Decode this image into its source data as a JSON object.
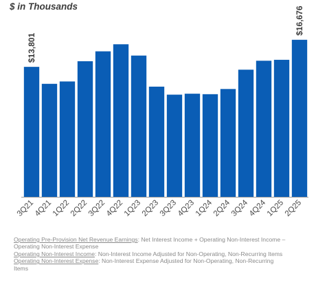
{
  "header": {
    "units_label": "$ in Thousands"
  },
  "chart_data": {
    "type": "bar",
    "title": "",
    "xlabel": "",
    "ylabel": "$ in Thousands",
    "categories": [
      "3Q21",
      "4Q21",
      "1Q22",
      "2Q22",
      "3Q22",
      "4Q22",
      "1Q23",
      "2Q23",
      "3Q23",
      "4Q23",
      "1Q24",
      "2Q24",
      "3Q24",
      "4Q24",
      "1Q25",
      "2Q25"
    ],
    "values": [
      13801,
      12000,
      12250,
      14400,
      15450,
      16200,
      15000,
      11700,
      10850,
      10950,
      10900,
      11450,
      13500,
      14450,
      14550,
      16676
    ],
    "ylim": [
      0,
      19000
    ],
    "grid": false,
    "color": "#0a5db5",
    "data_labels": [
      {
        "category": "3Q21",
        "text": "$13,801"
      },
      {
        "category": "2Q25",
        "text": "$16,676"
      }
    ]
  },
  "footnotes": [
    {
      "term": "Operating Pre-Provision Net Revenue Earnings",
      "text": ": Net Interest Income + Operating Non-Interest Income – Operating Non-Interest Expense"
    },
    {
      "term": "Operating Non-Interest Income",
      "text": ": Non-Interest Income Adjusted for Non-Operating, Non-Recurring Items"
    },
    {
      "term": "Operating Non-Interest Expense",
      "text": ": Non-Interest Expense Adjusted for Non-Operating, Non-Recurring Items"
    }
  ]
}
